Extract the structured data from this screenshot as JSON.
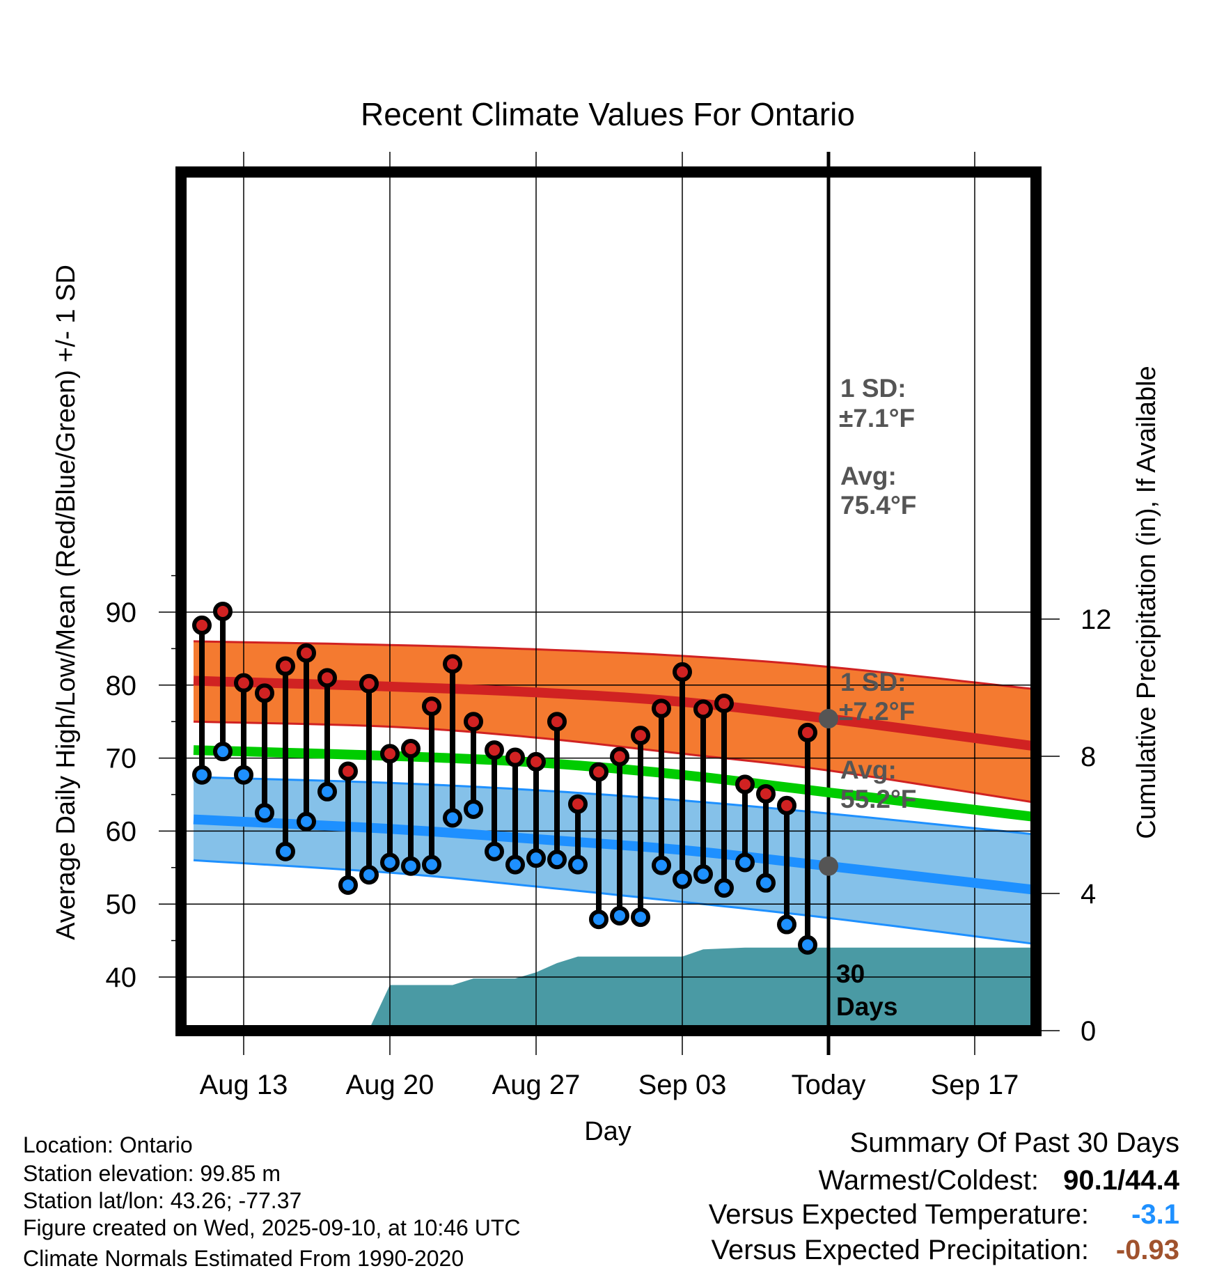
{
  "chart_data": {
    "type": "line",
    "title": "Recent Climate Values For Ontario",
    "xlabel": "Day",
    "ylabel": "Average Daily High/Low/Mean (Red/Blue/Green) +/- 1 SD",
    "y2label": "Cumulative Precipitation (in), If Available",
    "ylim": [
      36.8,
      95.5
    ],
    "y2lim": [
      0,
      14
    ],
    "yticks": [
      40,
      50,
      60,
      70,
      80,
      90
    ],
    "y2ticks": [
      0,
      4,
      8,
      12
    ],
    "xticks": [
      {
        "day": 2,
        "label": "Aug 13"
      },
      {
        "day": 9,
        "label": "Aug 20"
      },
      {
        "day": 16,
        "label": "Aug 27"
      },
      {
        "day": 23,
        "label": "Sep 03"
      },
      {
        "day": 30,
        "label": "Today"
      },
      {
        "day": 37,
        "label": "Sep 17"
      }
    ],
    "xlim": [
      -0.4,
      39.7
    ],
    "day0": "Aug 11",
    "today_day": 30,
    "observed": {
      "days": [
        0,
        1,
        2,
        3,
        4,
        5,
        6,
        7,
        8,
        9,
        10,
        11,
        12,
        13,
        14,
        15,
        16,
        17,
        18,
        19,
        20,
        21,
        22,
        23,
        24,
        25,
        26,
        27,
        28,
        29
      ],
      "high": [
        88.2,
        90.1,
        80.3,
        78.9,
        82.6,
        84.4,
        81.0,
        68.2,
        80.2,
        70.6,
        71.3,
        77.1,
        82.9,
        75.0,
        71.1,
        70.1,
        69.5,
        75.0,
        63.7,
        68.1,
        70.2,
        73.1,
        76.8,
        81.8,
        76.7,
        77.5,
        66.4,
        65.1,
        63.5,
        73.5
      ],
      "low": [
        67.7,
        70.9,
        67.7,
        62.5,
        57.2,
        61.3,
        65.4,
        52.6,
        54.0,
        55.7,
        55.2,
        55.4,
        61.8,
        63.0,
        57.2,
        55.4,
        56.3,
        56.1,
        55.4,
        47.9,
        48.4,
        48.2,
        55.3,
        53.4,
        54.1,
        52.2,
        55.7,
        52.9,
        47.2,
        44.4
      ]
    },
    "normals": {
      "days": [
        -0.4,
        9,
        16,
        23,
        30,
        39.7
      ],
      "high_upper": [
        86.0,
        85.5,
        84.9,
        84.0,
        82.5,
        79.5
      ],
      "high_avg": [
        80.6,
        79.8,
        79.0,
        77.7,
        75.4,
        71.7
      ],
      "high_lower": [
        75.0,
        74.3,
        72.8,
        70.6,
        68.3,
        64.0
      ],
      "mean": [
        71.1,
        70.3,
        69.4,
        67.7,
        65.3,
        62.0
      ],
      "low_upper": [
        67.4,
        66.6,
        65.6,
        64.2,
        62.4,
        59.6
      ],
      "low_avg": [
        61.6,
        60.3,
        58.9,
        57.4,
        55.2,
        52.0
      ],
      "low_lower": [
        56.0,
        54.3,
        52.4,
        50.3,
        48.1,
        44.6
      ]
    },
    "precip": {
      "days": [
        2,
        8,
        9,
        12,
        13,
        15,
        16,
        17,
        18,
        23,
        24,
        26,
        39.7
      ],
      "cumulative": [
        0.03,
        0.03,
        1.33,
        1.33,
        1.52,
        1.52,
        1.7,
        1.97,
        2.16,
        2.16,
        2.37,
        2.42,
        2.42
      ]
    },
    "annotations": {
      "high_sd_label": "1 SD:",
      "high_sd_value": "±7.1°F",
      "high_avg_label": "Avg:",
      "high_avg_value": "75.4°F",
      "low_sd_label": "1 SD:",
      "low_sd_value": "±7.2°F",
      "low_avg_label": "Avg:",
      "low_avg_value": "55.2°F",
      "period_line1": "30",
      "period_line2": "Days"
    },
    "colors": {
      "high_band": "#f47a30",
      "high_line": "#d02222",
      "mean_line": "#00cc00",
      "low_band": "#85c1e9",
      "low_line": "#1e90ff",
      "precip_fill": "#4a9aa4",
      "today_dot": "#555555"
    }
  },
  "info": {
    "location": "Location: Ontario",
    "elevation": "Station elevation: 99.85 m",
    "latlon": "Station lat/lon: 43.26; -77.37",
    "created": "Figure created on Wed, 2025-09-10, at 10:46 UTC",
    "normals": "Climate Normals Estimated From 1990-2020"
  },
  "summary": {
    "title": "Summary Of Past 30 Days",
    "warm_cold_label": "Warmest/Coldest:",
    "warm_cold_value": "90.1/44.4",
    "temp_label": "Versus Expected Temperature:",
    "temp_value": "-3.1",
    "temp_color": "#1e90ff",
    "precip_label": "Versus Expected Precipitation:",
    "precip_value": "-0.93",
    "precip_color": "#a0522d"
  }
}
